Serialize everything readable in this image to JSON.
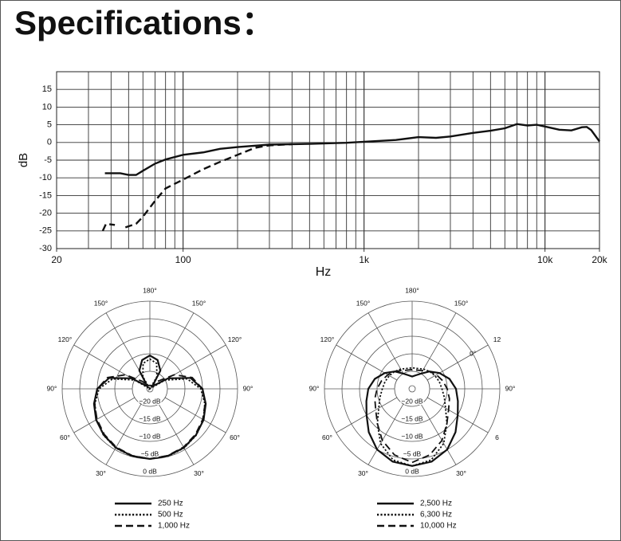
{
  "title": "Specifications：",
  "chart_data": [
    {
      "type": "line",
      "xlabel": "Hz",
      "ylabel": "dB",
      "xscale": "log",
      "xlim": [
        20,
        20000
      ],
      "xticks": [
        20,
        100,
        {
          "value": 1000,
          "label": "1k"
        },
        {
          "value": 10000,
          "label": "10k"
        },
        {
          "value": 20000,
          "label": "20k"
        }
      ],
      "ylim": [
        -30,
        20
      ],
      "yticks": [
        -30,
        -25,
        -20,
        -15,
        -10,
        -5,
        0,
        5,
        10,
        15
      ],
      "grid": true,
      "series": [
        {
          "color": "#111111",
          "style": "solid",
          "x": [
            37,
            45,
            50,
            55,
            60,
            70,
            80,
            100,
            130,
            160,
            200,
            300,
            500,
            800,
            1000,
            1500,
            2000,
            2500,
            3000,
            4000,
            5000,
            6000,
            7000,
            8000,
            9000,
            10000,
            12000,
            14000,
            16000,
            17000,
            18000,
            20000
          ],
          "values": [
            -8.7,
            -8.7,
            -9.2,
            -9.2,
            -8,
            -6,
            -4.8,
            -3.5,
            -2.8,
            -1.8,
            -1.3,
            -0.6,
            -0.4,
            -0.1,
            0.2,
            0.7,
            1.5,
            1.3,
            1.7,
            2.7,
            3.3,
            4,
            5.2,
            4.8,
            5,
            4.5,
            3.6,
            3.4,
            4.3,
            4.4,
            3.5,
            0.3
          ]
        },
        {
          "color": "#111111",
          "style": "dashed",
          "x": [
            36,
            37.5,
            42,
            45,
            48,
            55,
            60,
            70,
            80,
            100,
            130,
            160,
            200,
            250,
            300,
            400
          ],
          "values": [
            -25,
            -23,
            -23.3,
            null,
            -24,
            -23,
            -21,
            -16.5,
            -13,
            -10.5,
            -7.5,
            -5.5,
            -3.5,
            -1.5,
            -0.8,
            -0.5
          ]
        }
      ]
    },
    {
      "type": "polar",
      "theta": [
        0,
        15,
        30,
        45,
        60,
        75,
        90,
        105,
        120,
        135,
        150,
        165,
        180,
        195,
        210,
        225,
        240,
        255,
        270,
        285,
        300,
        315,
        330,
        345
      ],
      "rlim": [
        -25,
        0
      ],
      "rticks": [
        {
          "value": -20,
          "label": "−20 dB"
        },
        {
          "value": -15,
          "label": "−15 dB"
        },
        {
          "value": -10,
          "label": "−10 dB"
        },
        {
          "value": -5,
          "label": "−5 dB"
        },
        {
          "value": 0,
          "label": "0 dB"
        }
      ],
      "thetaticks": [
        {
          "value": 30,
          "label": "30°"
        },
        {
          "value": 60,
          "label": "60°"
        },
        {
          "value": 90,
          "label": "90°"
        },
        {
          "value": 120,
          "label": "120°"
        },
        {
          "value": 150,
          "label": "150°"
        },
        {
          "value": 180,
          "label": "180°"
        },
        {
          "value": 210,
          "label": "150°"
        },
        {
          "value": 240,
          "label": "120°"
        },
        {
          "value": 270,
          "label": "90°"
        },
        {
          "value": 300,
          "label": "60°"
        },
        {
          "value": 330,
          "label": "30°"
        }
      ],
      "series": [
        {
          "name": "250 Hz",
          "color": "#111111",
          "style": "solid",
          "values": [
            -5,
            -5.2,
            -5.6,
            -6.4,
            -7.3,
            -8.5,
            -10,
            -13,
            -19,
            -24,
            -19,
            -16.5,
            -15.5,
            -16.5,
            -19,
            -24,
            -19,
            -13,
            -10,
            -8.5,
            -7.3,
            -6.4,
            -5.6,
            -5.2
          ]
        },
        {
          "name": "500 Hz",
          "color": "#111111",
          "style": "dotted",
          "values": [
            -5,
            -5.1,
            -5.5,
            -6.3,
            -7.4,
            -8.8,
            -10.5,
            -14,
            -20,
            -25,
            -21,
            -17.5,
            -16.5,
            -17.5,
            -21,
            -25,
            -20,
            -14,
            -10.5,
            -8.8,
            -7.4,
            -6.3,
            -5.5,
            -5.1
          ]
        },
        {
          "name": "1,000 Hz",
          "color": "#111111",
          "style": "dashed",
          "values": [
            -5,
            -5.3,
            -5.8,
            -6.6,
            -7.6,
            -8.7,
            -10,
            -12.5,
            -17,
            -22,
            -24,
            -24,
            -24,
            -24,
            -24,
            -22,
            -17,
            -12.5,
            -10,
            -8.7,
            -7.6,
            -6.6,
            -5.8,
            -5.3
          ]
        }
      ]
    },
    {
      "type": "polar",
      "theta": [
        0,
        15,
        30,
        45,
        60,
        75,
        90,
        105,
        120,
        135,
        150,
        165,
        180,
        195,
        210,
        225,
        240,
        255,
        270,
        285,
        300,
        315,
        330,
        345
      ],
      "rlim": [
        -25,
        0
      ],
      "rticks": [
        {
          "value": -20,
          "label": "−20 dB"
        },
        {
          "value": -15,
          "label": "−15 dB"
        },
        {
          "value": -10,
          "label": "−10 dB"
        },
        {
          "value": -5,
          "label": "−5 dB"
        },
        {
          "value": 0,
          "label": "0 dB"
        }
      ],
      "thetaticks": [
        {
          "value": 30,
          "label": "30°"
        },
        {
          "value": 60,
          "label": "6"
        },
        {
          "value": 90,
          "label": "90°"
        },
        {
          "value": 120,
          "label": "12"
        },
        {
          "value": 120,
          "label": "0°"
        },
        {
          "value": 150,
          "label": "150°"
        },
        {
          "value": 180,
          "label": "180°"
        },
        {
          "value": 210,
          "label": "150°"
        },
        {
          "value": 240,
          "label": "120°"
        },
        {
          "value": 270,
          "label": "90°"
        },
        {
          "value": 300,
          "label": "60°"
        },
        {
          "value": 330,
          "label": "30°"
        }
      ],
      "series": [
        {
          "name": "2,500 Hz",
          "color": "#111111",
          "style": "solid",
          "values": [
            -3,
            -3.5,
            -5,
            -7.5,
            -10,
            -11.5,
            -12.5,
            -14,
            -16,
            -18,
            -20,
            -21,
            -21.5,
            -21,
            -20,
            -18,
            -16,
            -14,
            -12.5,
            -11.5,
            -10,
            -7.5,
            -5,
            -3.5
          ]
        },
        {
          "name": "6,300 Hz",
          "color": "#111111",
          "style": "dotted",
          "values": [
            -3,
            -4,
            -7,
            -11,
            -14,
            -15.5,
            -16.5,
            -17,
            -17.5,
            -18,
            -18.5,
            -19,
            -19,
            -19,
            -18.5,
            -18,
            -17.5,
            -17,
            -16.5,
            -15.5,
            -14,
            -11,
            -7,
            -4
          ]
        },
        {
          "name": "10,000 Hz",
          "color": "#111111",
          "style": "dashed",
          "values": [
            -4,
            -5.5,
            -8,
            -11,
            -13,
            -14,
            -15,
            -16,
            -17,
            -18,
            -19,
            -19.5,
            -19.5,
            -19.5,
            -19,
            -18,
            -17,
            -16,
            -15,
            -14,
            -13,
            -11,
            -8,
            -5.5
          ]
        }
      ]
    }
  ]
}
